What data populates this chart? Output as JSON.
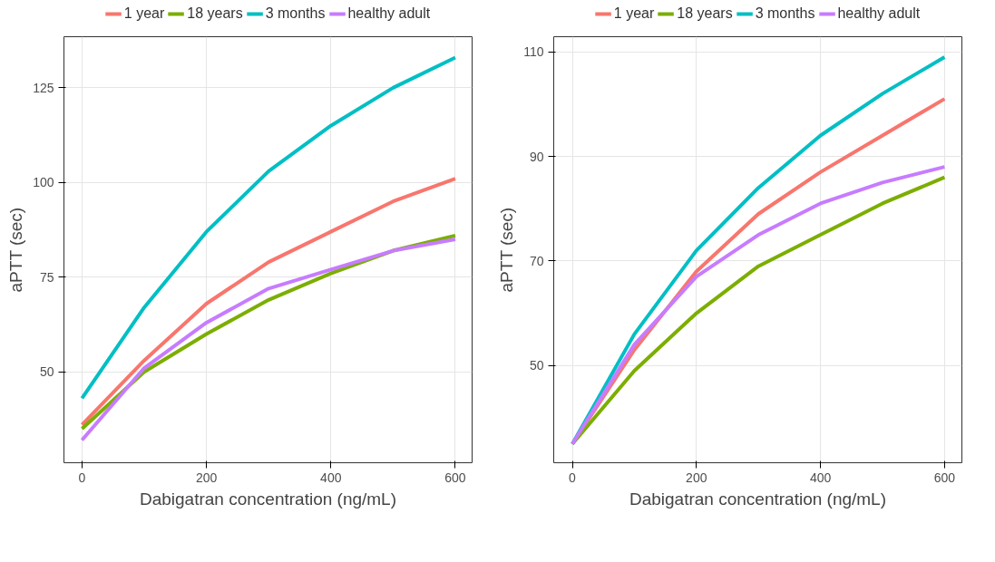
{
  "chart_data": [
    {
      "type": "line",
      "xlabel": "Dabigatran concentration (ng/mL)",
      "ylabel": "aPTT (sec)",
      "x": [
        0,
        100,
        200,
        300,
        400,
        500,
        600
      ],
      "xlim": [
        -29,
        627
      ],
      "ylim": [
        26,
        138.5
      ],
      "xticks": [
        0,
        200,
        400,
        600
      ],
      "yticks": [
        50,
        75,
        100,
        125
      ],
      "grid": true,
      "legend": "top",
      "line_style": "solid",
      "marker": "none",
      "series": [
        {
          "name": "1 year",
          "color": "#f8766d",
          "values": [
            36,
            53,
            68,
            79,
            87,
            95,
            101
          ]
        },
        {
          "name": "18 years",
          "color": "#7cae00",
          "values": [
            35,
            50,
            60,
            69,
            76,
            82,
            86
          ]
        },
        {
          "name": "3 months",
          "color": "#00bfc4",
          "values": [
            43,
            67,
            87,
            103,
            115,
            125,
            133
          ]
        },
        {
          "name": "healthy adult",
          "color": "#c77cff",
          "values": [
            32,
            51,
            63,
            72,
            77,
            82,
            85
          ]
        }
      ]
    },
    {
      "type": "line",
      "xlabel": "Dabigatran concentration (ng/mL)",
      "ylabel": "aPTT (sec)",
      "x": [
        0,
        100,
        200,
        300,
        400,
        500,
        600
      ],
      "xlim": [
        -30,
        628
      ],
      "ylim": [
        31.4,
        112.9
      ],
      "xticks": [
        0,
        200,
        400,
        600
      ],
      "yticks": [
        50,
        70,
        90,
        110
      ],
      "grid": true,
      "legend": "top",
      "line_style": "solid",
      "marker": "none",
      "series": [
        {
          "name": "1 year",
          "color": "#f8766d",
          "values": [
            35,
            53,
            68,
            79,
            87,
            94,
            101
          ]
        },
        {
          "name": "18 years",
          "color": "#7cae00",
          "values": [
            35,
            49,
            60,
            69,
            75,
            81,
            86
          ]
        },
        {
          "name": "3 months",
          "color": "#00bfc4",
          "values": [
            35,
            56,
            72,
            84,
            94,
            102,
            109
          ]
        },
        {
          "name": "healthy adult",
          "color": "#c77cff",
          "values": [
            35,
            54,
            67,
            75,
            81,
            85,
            88
          ]
        }
      ]
    }
  ]
}
